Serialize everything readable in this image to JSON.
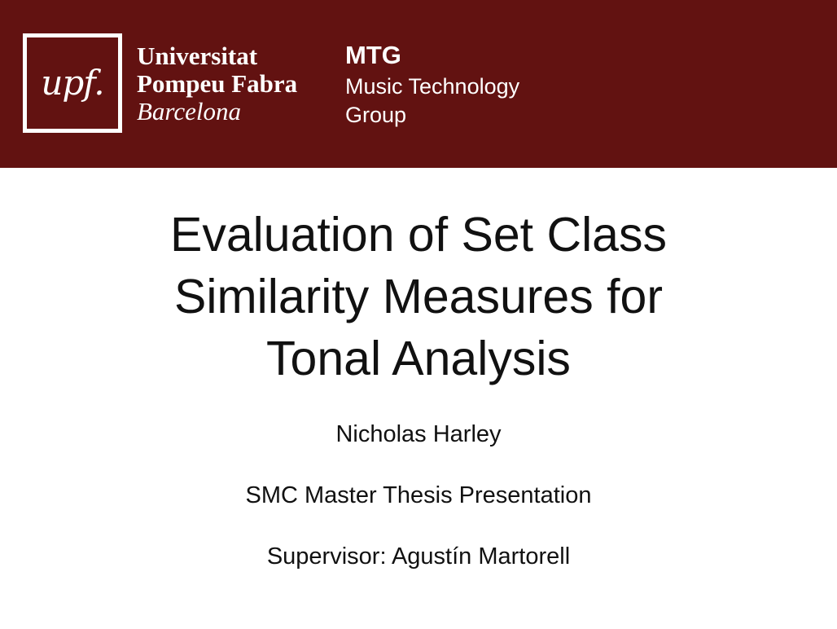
{
  "header": {
    "logo_mark": "upf.",
    "university": {
      "line1": "Universitat",
      "line2": "Pompeu Fabra",
      "line3": "Barcelona"
    },
    "group": {
      "acronym": "MTG",
      "line2": "Music Technology",
      "line3": "Group"
    },
    "colors": {
      "banner": "#621211",
      "text": "#ffffff"
    }
  },
  "slide": {
    "title_lines": [
      "Evaluation of Set Class",
      "Similarity Measures for",
      "Tonal Analysis"
    ],
    "author": "Nicholas Harley",
    "event": "SMC Master Thesis Presentation",
    "supervisor": "Supervisor: Agustín Martorell"
  }
}
